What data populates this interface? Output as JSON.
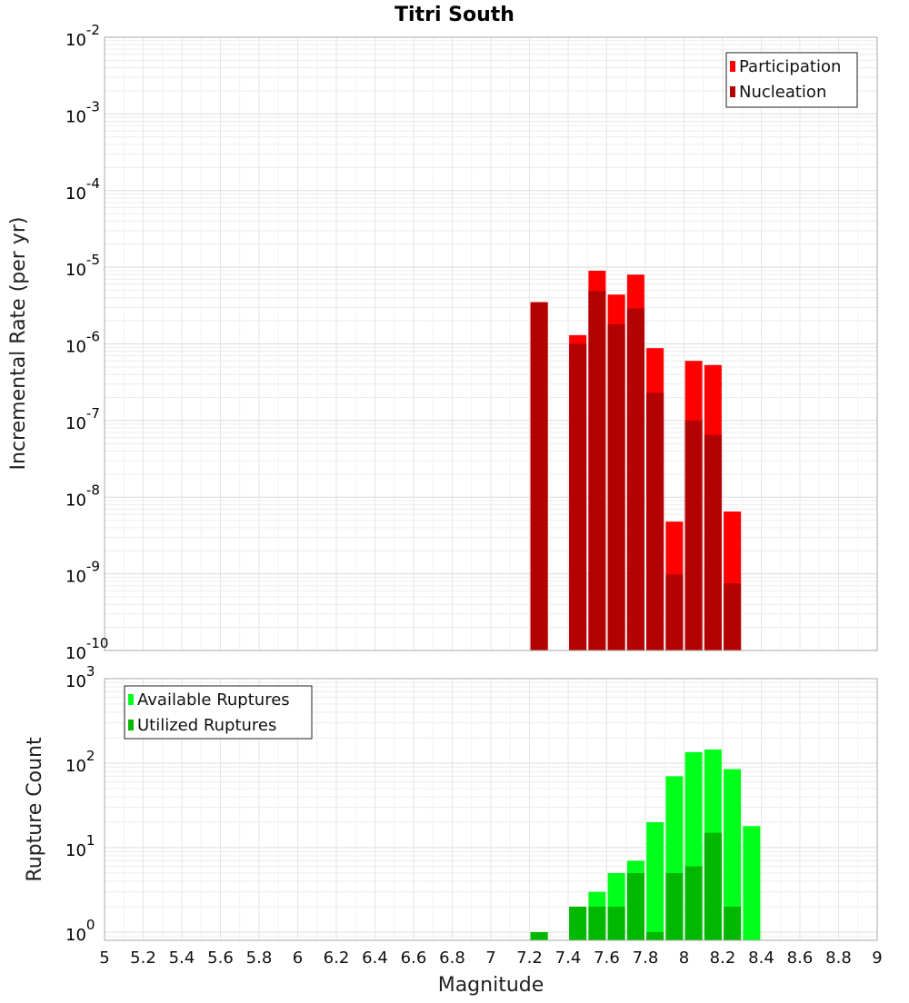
{
  "chart_data": [
    {
      "type": "bar",
      "title": "Titri South",
      "xlabel": "",
      "ylabel": "Incremental Rate (per yr)",
      "yscale": "log",
      "ylim": [
        1e-10,
        0.01
      ],
      "xlim": [
        5,
        9
      ],
      "grid": true,
      "legend_placement": "top-right",
      "y_tick_labels": [
        {
          "base": "10",
          "exp": "-10"
        },
        {
          "base": "10",
          "exp": "-9"
        },
        {
          "base": "10",
          "exp": "-8"
        },
        {
          "base": "10",
          "exp": "-7"
        },
        {
          "base": "10",
          "exp": "-6"
        },
        {
          "base": "10",
          "exp": "-5"
        },
        {
          "base": "10",
          "exp": "-4"
        },
        {
          "base": "10",
          "exp": "-3"
        },
        {
          "base": "10",
          "exp": "-2"
        }
      ],
      "x": [
        7.25,
        7.45,
        7.55,
        7.65,
        7.75,
        7.85,
        7.95,
        8.05,
        8.15,
        8.25
      ],
      "series": [
        {
          "name": "Participation",
          "color": "#ff0000",
          "values": [
            3.5e-06,
            1.3e-06,
            9e-06,
            4.4e-06,
            8e-06,
            8.8e-07,
            4.8e-09,
            6e-07,
            5.3e-07,
            6.5e-09
          ]
        },
        {
          "name": "Nucleation",
          "color": "#b30000",
          "values": [
            3.5e-06,
            1e-06,
            4.9e-06,
            1.8e-06,
            2.9e-06,
            2.3e-07,
            9.8e-10,
            1e-07,
            6.5e-08,
            7.5e-10
          ]
        }
      ]
    },
    {
      "type": "bar",
      "title": "",
      "xlabel": "Magnitude",
      "ylabel": "Rupture Count",
      "yscale": "log",
      "ylim": [
        0.8,
        1000
      ],
      "xlim": [
        5,
        9
      ],
      "grid": true,
      "legend_placement": "top-left",
      "y_tick_labels": [
        {
          "base": "10",
          "exp": "0"
        },
        {
          "base": "10",
          "exp": "1"
        },
        {
          "base": "10",
          "exp": "2"
        },
        {
          "base": "10",
          "exp": "3"
        }
      ],
      "x_tick_labels": [
        "5",
        "5.2",
        "5.4",
        "5.6",
        "5.8",
        "6",
        "6.2",
        "6.4",
        "6.6",
        "6.8",
        "7",
        "7.2",
        "7.4",
        "7.6",
        "7.8",
        "8",
        "8.2",
        "8.4",
        "8.6",
        "8.8",
        "9"
      ],
      "x": [
        7.25,
        7.45,
        7.55,
        7.65,
        7.75,
        7.85,
        7.95,
        8.05,
        8.15,
        8.25,
        8.35
      ],
      "series": [
        {
          "name": "Available Ruptures",
          "color": "#00ff1a",
          "values": [
            1,
            2,
            3,
            5,
            7,
            20,
            70,
            135,
            145,
            85,
            18
          ]
        },
        {
          "name": "Utilized Ruptures",
          "color": "#00b800",
          "values": [
            1,
            2,
            2,
            2,
            5,
            1,
            5,
            6,
            15,
            2,
            0
          ]
        }
      ]
    }
  ]
}
